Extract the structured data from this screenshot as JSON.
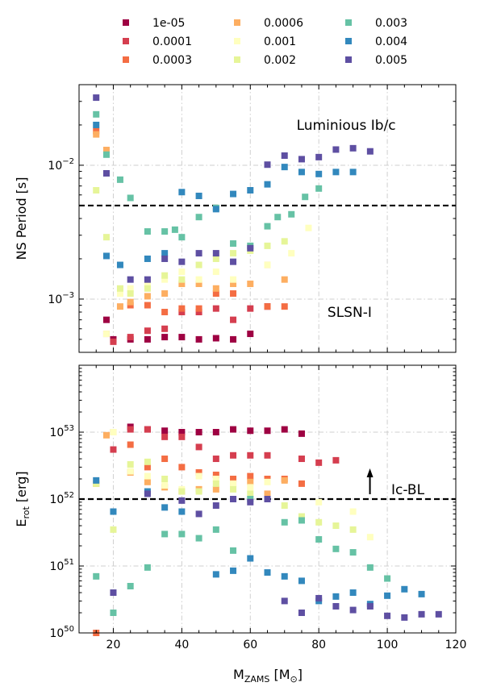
{
  "chart_data": {
    "type": "scatter",
    "xlabel": "M_ZAMS [M_⊙]",
    "xlim": [
      10,
      120
    ],
    "xticks": [
      "20",
      "40",
      "60",
      "80",
      "100",
      "120"
    ],
    "legend": {
      "placement": "top-center",
      "columns": 3,
      "entries": [
        {
          "name": "1e-05",
          "color": "#9e0142"
        },
        {
          "name": "0.0001",
          "color": "#d53e4f"
        },
        {
          "name": "0.0003",
          "color": "#f46d43"
        },
        {
          "name": "0.0006",
          "color": "#fdae61"
        },
        {
          "name": "0.001",
          "color": "#ffffbf"
        },
        {
          "name": "0.002",
          "color": "#e6f598"
        },
        {
          "name": "0.003",
          "color": "#66c2a5"
        },
        {
          "name": "0.004",
          "color": "#3288bd"
        },
        {
          "name": "0.005",
          "color": "#5e4fa2"
        }
      ]
    },
    "panels": [
      {
        "id": "period",
        "ylabel": "NS Period [s]",
        "yscale": "log",
        "ylim": [
          0.0004,
          0.04
        ],
        "yticks": [
          {
            "value": 0.001,
            "label": "10",
            "exp": "−3"
          },
          {
            "value": 0.01,
            "label": "10",
            "exp": "−2"
          }
        ],
        "threshold": 0.005,
        "annotations": [
          {
            "text": "Luminious Ib/c",
            "x": 88,
            "y": 0.02
          },
          {
            "text": "SLSN-I",
            "x": 89,
            "y": 0.0008
          }
        ],
        "series": [
          {
            "name": "1e-05",
            "x": [
              18,
              20,
              25,
              30,
              35,
              40,
              45,
              50,
              55,
              60,
              65
            ],
            "y": [
              0.0007,
              0.0005,
              0.0005,
              0.0005,
              0.00052,
              0.00052,
              0.0005,
              0.00051,
              0.0005,
              0.00055,
              0.00088
            ]
          },
          {
            "name": "0.0001",
            "x": [
              18,
              20,
              25,
              30,
              35,
              40,
              45,
              50,
              55,
              60
            ],
            "y": [
              0.00055,
              0.00048,
              0.00052,
              0.00058,
              0.0006,
              0.0008,
              0.0008,
              0.00085,
              0.0007,
              0.00085
            ]
          },
          {
            "name": "0.0003",
            "x": [
              15,
              25,
              30,
              35,
              40,
              45,
              50,
              55,
              65,
              70
            ],
            "y": [
              0.018,
              0.0009,
              0.0009,
              0.0008,
              0.00085,
              0.00085,
              0.0011,
              0.0011,
              0.00088,
              0.00088
            ]
          },
          {
            "name": "0.0006",
            "x": [
              15,
              18,
              22,
              25,
              30,
              35,
              40,
              45,
              50,
              55,
              60,
              65,
              70
            ],
            "y": [
              0.017,
              0.013,
              0.00088,
              0.00095,
              0.00105,
              0.0011,
              0.0013,
              0.0013,
              0.0012,
              0.0013,
              0.0013,
              0.0018,
              0.0014
            ]
          },
          {
            "name": "0.001",
            "x": [
              18,
              22,
              25,
              30,
              35,
              40,
              45,
              50,
              55,
              65,
              72,
              77
            ],
            "y": [
              0.00055,
              0.0011,
              0.0012,
              0.0013,
              0.0014,
              0.0016,
              0.0014,
              0.0016,
              0.0014,
              0.0018,
              0.0022,
              0.0034
            ]
          },
          {
            "name": "0.002",
            "x": [
              15,
              18,
              22,
              25,
              30,
              35,
              40,
              45,
              50,
              55,
              60,
              65,
              70
            ],
            "y": [
              0.0065,
              0.0029,
              0.0012,
              0.0011,
              0.0012,
              0.0015,
              0.0014,
              0.0018,
              0.002,
              0.0022,
              0.0023,
              0.0025,
              0.0027
            ]
          },
          {
            "name": "0.003",
            "x": [
              15,
              18,
              22,
              25,
              30,
              35,
              38,
              40,
              45,
              50,
              55,
              60,
              65,
              68,
              72,
              76,
              80
            ],
            "y": [
              0.024,
              0.012,
              0.0078,
              0.0057,
              0.0032,
              0.0032,
              0.0033,
              0.0029,
              0.0041,
              0.0048,
              0.0026,
              0.0025,
              0.0035,
              0.0041,
              0.0043,
              0.0058,
              0.0067
            ]
          },
          {
            "name": "0.004",
            "x": [
              15,
              18,
              22,
              30,
              35,
              40,
              45,
              50,
              55,
              60,
              65,
              70,
              75,
              80,
              85,
              90
            ],
            "y": [
              0.02,
              0.0021,
              0.0018,
              0.002,
              0.0022,
              0.0063,
              0.0059,
              0.0047,
              0.0061,
              0.0065,
              0.0072,
              0.0097,
              0.0089,
              0.0086,
              0.0089,
              0.0089
            ]
          },
          {
            "name": "0.005",
            "x": [
              15,
              18,
              25,
              30,
              35,
              40,
              45,
              50,
              55,
              60,
              65,
              70,
              75,
              80,
              85,
              90,
              95
            ],
            "y": [
              0.032,
              0.0087,
              0.0014,
              0.0014,
              0.002,
              0.0019,
              0.0022,
              0.0022,
              0.0019,
              0.0024,
              0.0101,
              0.0118,
              0.0111,
              0.0115,
              0.0131,
              0.0134,
              0.0127
            ]
          }
        ]
      },
      {
        "id": "erot",
        "ylabel": "E_rot [erg]",
        "yscale": "log",
        "ylim": [
          1e+50,
          1e+54
        ],
        "yticks": [
          {
            "value": 1e+50,
            "label": "10",
            "exp": "50"
          },
          {
            "value": 1e+51,
            "label": "10",
            "exp": "51"
          },
          {
            "value": 1e+52,
            "label": "10",
            "exp": "52"
          },
          {
            "value": 1e+53,
            "label": "10",
            "exp": "53"
          }
        ],
        "threshold": 1e+52,
        "annotations": [
          {
            "text": "Ic-BL",
            "x": 106,
            "y": 1.4e+52,
            "arrow": true
          }
        ],
        "series": [
          {
            "name": "1e-05",
            "x": [
              20,
              25,
              30,
              35,
              40,
              45,
              50,
              55,
              60,
              65,
              70,
              75
            ],
            "y": [
              1e+53,
              1.2e+53,
              1.1e+53,
              1.05e+53,
              1e+53,
              1e+53,
              1e+53,
              1.1e+53,
              1.05e+53,
              1.05e+53,
              1.1e+53,
              9.5e+52
            ]
          },
          {
            "name": "0.0001",
            "x": [
              20,
              25,
              30,
              35,
              40,
              45,
              50,
              55,
              60,
              65,
              75,
              80,
              85
            ],
            "y": [
              5.5e+52,
              1.1e+53,
              1.1e+53,
              8.5e+52,
              8.5e+52,
              6e+52,
              4e+52,
              4.5e+52,
              4.5e+52,
              4.5e+52,
              4e+52,
              3.5e+52,
              3.8e+52
            ]
          },
          {
            "name": "0.0003",
            "x": [
              15,
              25,
              30,
              35,
              40,
              45,
              50,
              55,
              60,
              65,
              70,
              75
            ],
            "y": [
              1e+50,
              6.5e+52,
              3e+52,
              4e+52,
              3e+52,
              2.5e+52,
              2.3e+52,
              2e+52,
              2.2e+52,
              2e+52,
              2e+52,
              1.7e+52
            ]
          },
          {
            "name": "0.0006",
            "x": [
              15,
              18,
              20,
              25,
              30,
              35,
              40,
              45,
              50,
              55,
              60,
              65,
              70
            ],
            "y": [
              1.7e+52,
              9e+52,
              1e+53,
              2.5e+52,
              1.8e+52,
              1.5e+52,
              1.3e+52,
              1.4e+52,
              1.4e+52,
              1.7e+52,
              1.8e+52,
              1.2e+52,
              1.9e+52
            ]
          },
          {
            "name": "0.001",
            "x": [
              20,
              25,
              30,
              35,
              40,
              45,
              50,
              55,
              60,
              65,
              80,
              90,
              95
            ],
            "y": [
              1e+53,
              2.6e+52,
              2.2e+52,
              1.6e+52,
              1.4e+52,
              2.2e+52,
              2e+52,
              1.7e+52,
              1.5e+52,
              1.8e+52,
              9e+51,
              6.5e+51,
              2.7e+51
            ]
          },
          {
            "name": "0.002",
            "x": [
              15,
              20,
              25,
              30,
              35,
              40,
              45,
              50,
              55,
              60,
              65,
              70,
              75,
              80,
              85,
              90
            ],
            "y": [
              1.7e+52,
              3.5e+51,
              3.3e+52,
              3.6e+52,
              2e+52,
              1.3e+52,
              1.3e+52,
              1.7e+52,
              1.4e+52,
              1.2e+52,
              1e+52,
              8e+51,
              5.5e+51,
              4.5e+51,
              4e+51,
              3.5e+51
            ]
          },
          {
            "name": "0.003",
            "x": [
              15,
              20,
              25,
              30,
              35,
              40,
              45,
              50,
              55,
              60,
              65,
              70,
              75,
              80,
              85,
              90,
              95,
              100
            ],
            "y": [
              7e+50,
              2e+50,
              5e+50,
              9.5e+50,
              3e+51,
              3e+51,
              2.6e+51,
              3.5e+51,
              1.7e+51,
              1e+52,
              1e+52,
              4.5e+51,
              4.8e+51,
              2.5e+51,
              1.8e+51,
              1.6e+51,
              9.5e+50,
              6.5e+50
            ]
          },
          {
            "name": "0.004",
            "x": [
              15,
              20,
              30,
              35,
              40,
              50,
              55,
              60,
              65,
              70,
              75,
              80,
              85,
              90,
              95,
              100,
              105,
              110
            ],
            "y": [
              1.9e+52,
              6.5e+51,
              1.3e+52,
              7.5e+51,
              6.5e+51,
              7.5e+50,
              8.5e+50,
              1.3e+51,
              8e+50,
              7e+50,
              6e+50,
              3e+50,
              3.5e+50,
              4e+50,
              2.7e+50,
              3.6e+50,
              4.5e+50,
              3.8e+50
            ]
          },
          {
            "name": "0.005",
            "x": [
              20,
              30,
              40,
              45,
              50,
              55,
              60,
              65,
              70,
              75,
              80,
              85,
              90,
              95,
              100,
              105,
              110,
              115
            ],
            "y": [
              4e+50,
              1.2e+52,
              9.5e+51,
              6e+51,
              8e+51,
              1e+52,
              9e+51,
              1e+52,
              3e+50,
              2e+50,
              3.3e+50,
              2.5e+50,
              2.2e+50,
              2.5e+50,
              1.8e+50,
              1.7e+50,
              1.9e+50,
              1.9e+50
            ]
          }
        ]
      }
    ]
  }
}
